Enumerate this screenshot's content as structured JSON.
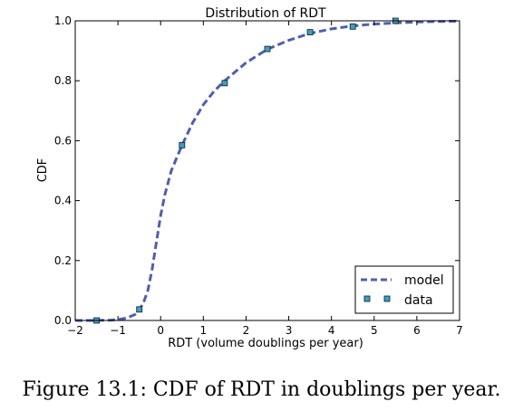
{
  "caption": "Figure 13.1: CDF of RDT in doublings per year.",
  "colors": {
    "model_line": "#4f5fae",
    "data_marker_fill": "#3aa0c8",
    "data_marker_edge": "#1a1a1a",
    "axes": "#000000"
  },
  "chart_data": {
    "type": "line",
    "title": "Distribution of RDT",
    "xlabel": "RDT (volume doublings per year)",
    "ylabel": "CDF",
    "xlim": [
      -2,
      7
    ],
    "ylim": [
      0.0,
      1.0
    ],
    "xticks": [
      -2,
      -1,
      0,
      1,
      2,
      3,
      4,
      5,
      6,
      7
    ],
    "yticks": [
      0.0,
      0.2,
      0.4,
      0.6,
      0.8,
      1.0
    ],
    "xtick_labels": [
      "−2",
      "−1",
      "0",
      "1",
      "2",
      "3",
      "4",
      "5",
      "6",
      "7"
    ],
    "ytick_labels": [
      "0.0",
      "0.2",
      "0.4",
      "0.6",
      "0.8",
      "1.0"
    ],
    "grid": false,
    "legend_position": "lower-right",
    "series": [
      {
        "name": "model",
        "style": "dashed-line",
        "x": [
          -2.0,
          -1.6,
          -1.2,
          -1.0,
          -0.8,
          -0.6,
          -0.5,
          -0.4,
          -0.3,
          -0.2,
          -0.1,
          0.0,
          0.1,
          0.25,
          0.5,
          0.75,
          1.0,
          1.25,
          1.5,
          2.0,
          2.5,
          3.0,
          3.5,
          4.0,
          4.5,
          5.0,
          5.5,
          6.0,
          6.5,
          7.0
        ],
        "y": [
          0.0,
          0.0,
          0.001,
          0.003,
          0.008,
          0.02,
          0.035,
          0.06,
          0.1,
          0.17,
          0.26,
          0.35,
          0.42,
          0.5,
          0.585,
          0.66,
          0.72,
          0.765,
          0.8,
          0.86,
          0.905,
          0.935,
          0.958,
          0.973,
          0.983,
          0.989,
          0.993,
          0.996,
          0.998,
          0.999
        ]
      },
      {
        "name": "data",
        "style": "square-markers",
        "x": [
          -1.5,
          -0.5,
          0.5,
          1.5,
          2.5,
          3.5,
          4.5,
          5.5
        ],
        "y": [
          0.0,
          0.037,
          0.585,
          0.792,
          0.906,
          0.962,
          0.981,
          1.0
        ]
      }
    ]
  }
}
